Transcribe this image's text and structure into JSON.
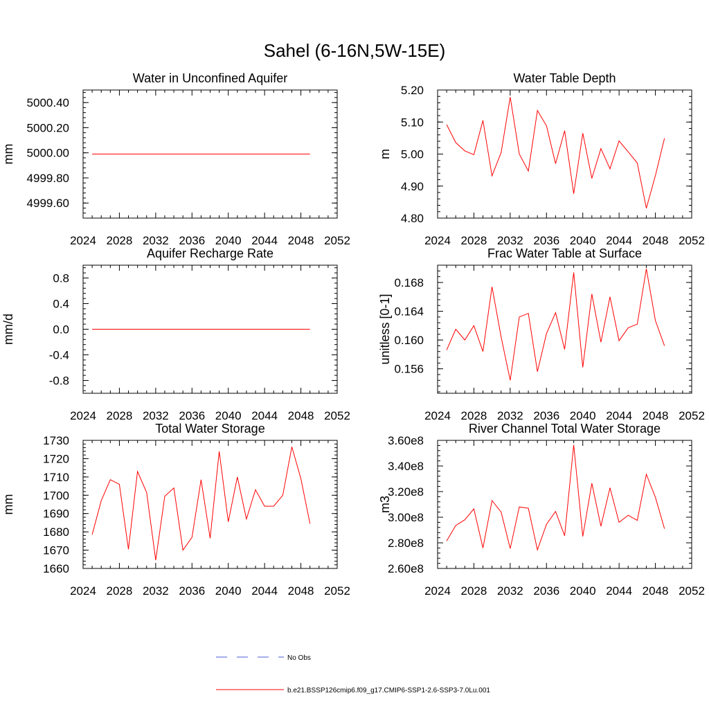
{
  "figure_title": "Sahel (6-16N,5W-15E)",
  "legend": [
    {
      "label": "No Obs",
      "color": "#4a5bd6",
      "style": "dashed"
    },
    {
      "label": "b.e21.BSSP126cmip6.f09_g17.CMIP6-SSP1-2.6-SSP3-7.0Lu.001",
      "color": "#ff0000",
      "style": "solid"
    }
  ],
  "chart_data": [
    {
      "type": "line",
      "title": "Water in Unconfined Aquifer",
      "ylabel": "mm",
      "xlim": [
        2024,
        2052
      ],
      "xticks": [
        "2024",
        "2028",
        "2032",
        "2036",
        "2040",
        "2044",
        "2048",
        "2052"
      ],
      "ylim": [
        4999.48,
        5000.5
      ],
      "yticks": [
        {
          "v": 4999.6,
          "label": "4999.60"
        },
        {
          "v": 4999.8,
          "label": "4999.80"
        },
        {
          "v": 5000.0,
          "label": "5000.00"
        },
        {
          "v": 5000.2,
          "label": "5000.20"
        },
        {
          "v": 5000.4,
          "label": "5000.40"
        }
      ],
      "yminor": 0.04,
      "x": [
        2025,
        2026,
        2027,
        2028,
        2029,
        2030,
        2031,
        2032,
        2033,
        2034,
        2035,
        2036,
        2037,
        2038,
        2039,
        2040,
        2041,
        2042,
        2043,
        2044,
        2045,
        2046,
        2047,
        2048,
        2049
      ],
      "series": [
        {
          "color": "#ff0000",
          "values": [
            4999.99,
            4999.99,
            4999.99,
            4999.99,
            4999.99,
            4999.99,
            4999.99,
            4999.99,
            4999.99,
            4999.99,
            4999.99,
            4999.99,
            4999.99,
            4999.99,
            4999.99,
            4999.99,
            4999.99,
            4999.99,
            4999.99,
            4999.99,
            4999.99,
            4999.99,
            4999.99,
            4999.99,
            4999.99
          ]
        }
      ]
    },
    {
      "type": "line",
      "title": "Water Table Depth",
      "ylabel": "m",
      "xlim": [
        2024,
        2052
      ],
      "xticks": [
        "2024",
        "2028",
        "2032",
        "2036",
        "2040",
        "2044",
        "2048",
        "2052"
      ],
      "ylim": [
        4.8,
        5.2
      ],
      "yticks": [
        {
          "v": 4.8,
          "label": "4.80"
        },
        {
          "v": 4.9,
          "label": "4.90"
        },
        {
          "v": 5.0,
          "label": "5.00"
        },
        {
          "v": 5.1,
          "label": "5.10"
        },
        {
          "v": 5.2,
          "label": "5.20"
        }
      ],
      "yminor": 0.02,
      "x": [
        2025,
        2026,
        2027,
        2028,
        2029,
        2030,
        2031,
        2032,
        2033,
        2034,
        2035,
        2036,
        2037,
        2038,
        2039,
        2040,
        2041,
        2042,
        2043,
        2044,
        2045,
        2046,
        2047,
        2048,
        2049
      ],
      "series": [
        {
          "color": "#ff0000",
          "values": [
            5.092,
            5.036,
            5.01,
            4.998,
            5.105,
            4.932,
            5.005,
            5.178,
            5.0,
            4.947,
            5.136,
            5.088,
            4.97,
            5.073,
            4.876,
            5.065,
            4.924,
            5.017,
            4.954,
            5.041,
            5.007,
            4.972,
            4.831,
            4.933,
            5.049
          ]
        }
      ]
    },
    {
      "type": "line",
      "title": "Aquifer Recharge Rate",
      "ylabel": "mm/d",
      "xlim": [
        2024,
        2052
      ],
      "xticks": [
        "2024",
        "2028",
        "2032",
        "2036",
        "2040",
        "2044",
        "2048",
        "2052"
      ],
      "ylim": [
        -1.0,
        1.0
      ],
      "yticks": [
        {
          "v": -0.8,
          "label": "-0.8"
        },
        {
          "v": -0.4,
          "label": "-0.4"
        },
        {
          "v": 0.0,
          "label": "0.0"
        },
        {
          "v": 0.4,
          "label": "0.4"
        },
        {
          "v": 0.8,
          "label": "0.8"
        }
      ],
      "yminor": 0.08,
      "x": [
        2025,
        2026,
        2027,
        2028,
        2029,
        2030,
        2031,
        2032,
        2033,
        2034,
        2035,
        2036,
        2037,
        2038,
        2039,
        2040,
        2041,
        2042,
        2043,
        2044,
        2045,
        2046,
        2047,
        2048,
        2049
      ],
      "series": [
        {
          "color": "#ff0000",
          "values": [
            0,
            0,
            0,
            0,
            0,
            0,
            0,
            0,
            0,
            0,
            0,
            0,
            0,
            0,
            0,
            0,
            0,
            0,
            0,
            0,
            0,
            0,
            0,
            0,
            0
          ]
        }
      ]
    },
    {
      "type": "line",
      "title": "Frac Water Table at Surface",
      "ylabel": "unitless [0-1]",
      "xlim": [
        2024,
        2052
      ],
      "xticks": [
        "2024",
        "2028",
        "2032",
        "2036",
        "2040",
        "2044",
        "2048",
        "2052"
      ],
      "ylim": [
        0.1526,
        0.1704
      ],
      "yticks": [
        {
          "v": 0.156,
          "label": "0.156"
        },
        {
          "v": 0.16,
          "label": "0.160"
        },
        {
          "v": 0.164,
          "label": "0.164"
        },
        {
          "v": 0.168,
          "label": "0.168"
        }
      ],
      "yminor": 0.0008,
      "x": [
        2025,
        2026,
        2027,
        2028,
        2029,
        2030,
        2031,
        2032,
        2033,
        2034,
        2035,
        2036,
        2037,
        2038,
        2039,
        2040,
        2041,
        2042,
        2043,
        2044,
        2045,
        2046,
        2047,
        2048,
        2049
      ],
      "series": [
        {
          "color": "#ff0000",
          "values": [
            0.1586,
            0.1615,
            0.16,
            0.162,
            0.1584,
            0.1674,
            0.1604,
            0.1544,
            0.1632,
            0.1637,
            0.1556,
            0.1609,
            0.1638,
            0.1587,
            0.1694,
            0.1562,
            0.1664,
            0.1597,
            0.166,
            0.1599,
            0.1617,
            0.1622,
            0.1699,
            0.1627,
            0.1592
          ]
        }
      ]
    },
    {
      "type": "line",
      "title": "Total Water Storage",
      "ylabel": "mm",
      "xlim": [
        2024,
        2052
      ],
      "xticks": [
        "2024",
        "2028",
        "2032",
        "2036",
        "2040",
        "2044",
        "2048",
        "2052"
      ],
      "ylim": [
        1660,
        1730
      ],
      "yticks": [
        {
          "v": 1660,
          "label": "1660"
        },
        {
          "v": 1670,
          "label": "1670"
        },
        {
          "v": 1680,
          "label": "1680"
        },
        {
          "v": 1690,
          "label": "1690"
        },
        {
          "v": 1700,
          "label": "1700"
        },
        {
          "v": 1710,
          "label": "1710"
        },
        {
          "v": 1720,
          "label": "1720"
        },
        {
          "v": 1730,
          "label": "1730"
        }
      ],
      "yminor": 2,
      "x": [
        2025,
        2026,
        2027,
        2028,
        2029,
        2030,
        2031,
        2032,
        2033,
        2034,
        2035,
        2036,
        2037,
        2038,
        2039,
        2040,
        2041,
        2042,
        2043,
        2044,
        2045,
        2046,
        2047,
        2048,
        2049
      ],
      "series": [
        {
          "color": "#ff0000",
          "values": [
            1678.5,
            1697,
            1708.5,
            1706,
            1670.5,
            1713,
            1701.5,
            1664.5,
            1699.5,
            1704,
            1670,
            1677,
            1708.5,
            1676.5,
            1724,
            1685.5,
            1710,
            1687,
            1703,
            1694,
            1694,
            1700,
            1726.5,
            1709,
            1684.5
          ]
        }
      ]
    },
    {
      "type": "line",
      "title": "River Channel Total Water Storage",
      "ylabel": "m3",
      "xlim": [
        2024,
        2052
      ],
      "xticks": [
        "2024",
        "2028",
        "2032",
        "2036",
        "2040",
        "2044",
        "2048",
        "2052"
      ],
      "ylim": [
        260000000,
        360000000
      ],
      "yticks": [
        {
          "v": 260000000,
          "label": "2.60e8"
        },
        {
          "v": 280000000,
          "label": "2.80e8"
        },
        {
          "v": 300000000,
          "label": "3.00e8"
        },
        {
          "v": 320000000,
          "label": "3.20e8"
        },
        {
          "v": 340000000,
          "label": "3.40e8"
        },
        {
          "v": 360000000,
          "label": "3.60e8"
        }
      ],
      "yminor": 4000000,
      "x": [
        2025,
        2026,
        2027,
        2028,
        2029,
        2030,
        2031,
        2032,
        2033,
        2034,
        2035,
        2036,
        2037,
        2038,
        2039,
        2040,
        2041,
        2042,
        2043,
        2044,
        2045,
        2046,
        2047,
        2048,
        2049
      ],
      "series": [
        {
          "color": "#ff0000",
          "values": [
            281500000,
            293500000,
            298000000,
            306500000,
            276000000,
            313000000,
            304000000,
            275500000,
            308000000,
            307000000,
            274500000,
            294500000,
            304500000,
            285500000,
            356500000,
            285000000,
            326500000,
            293000000,
            323000000,
            296000000,
            301500000,
            297500000,
            333500000,
            315500000,
            291000000
          ]
        }
      ]
    }
  ]
}
